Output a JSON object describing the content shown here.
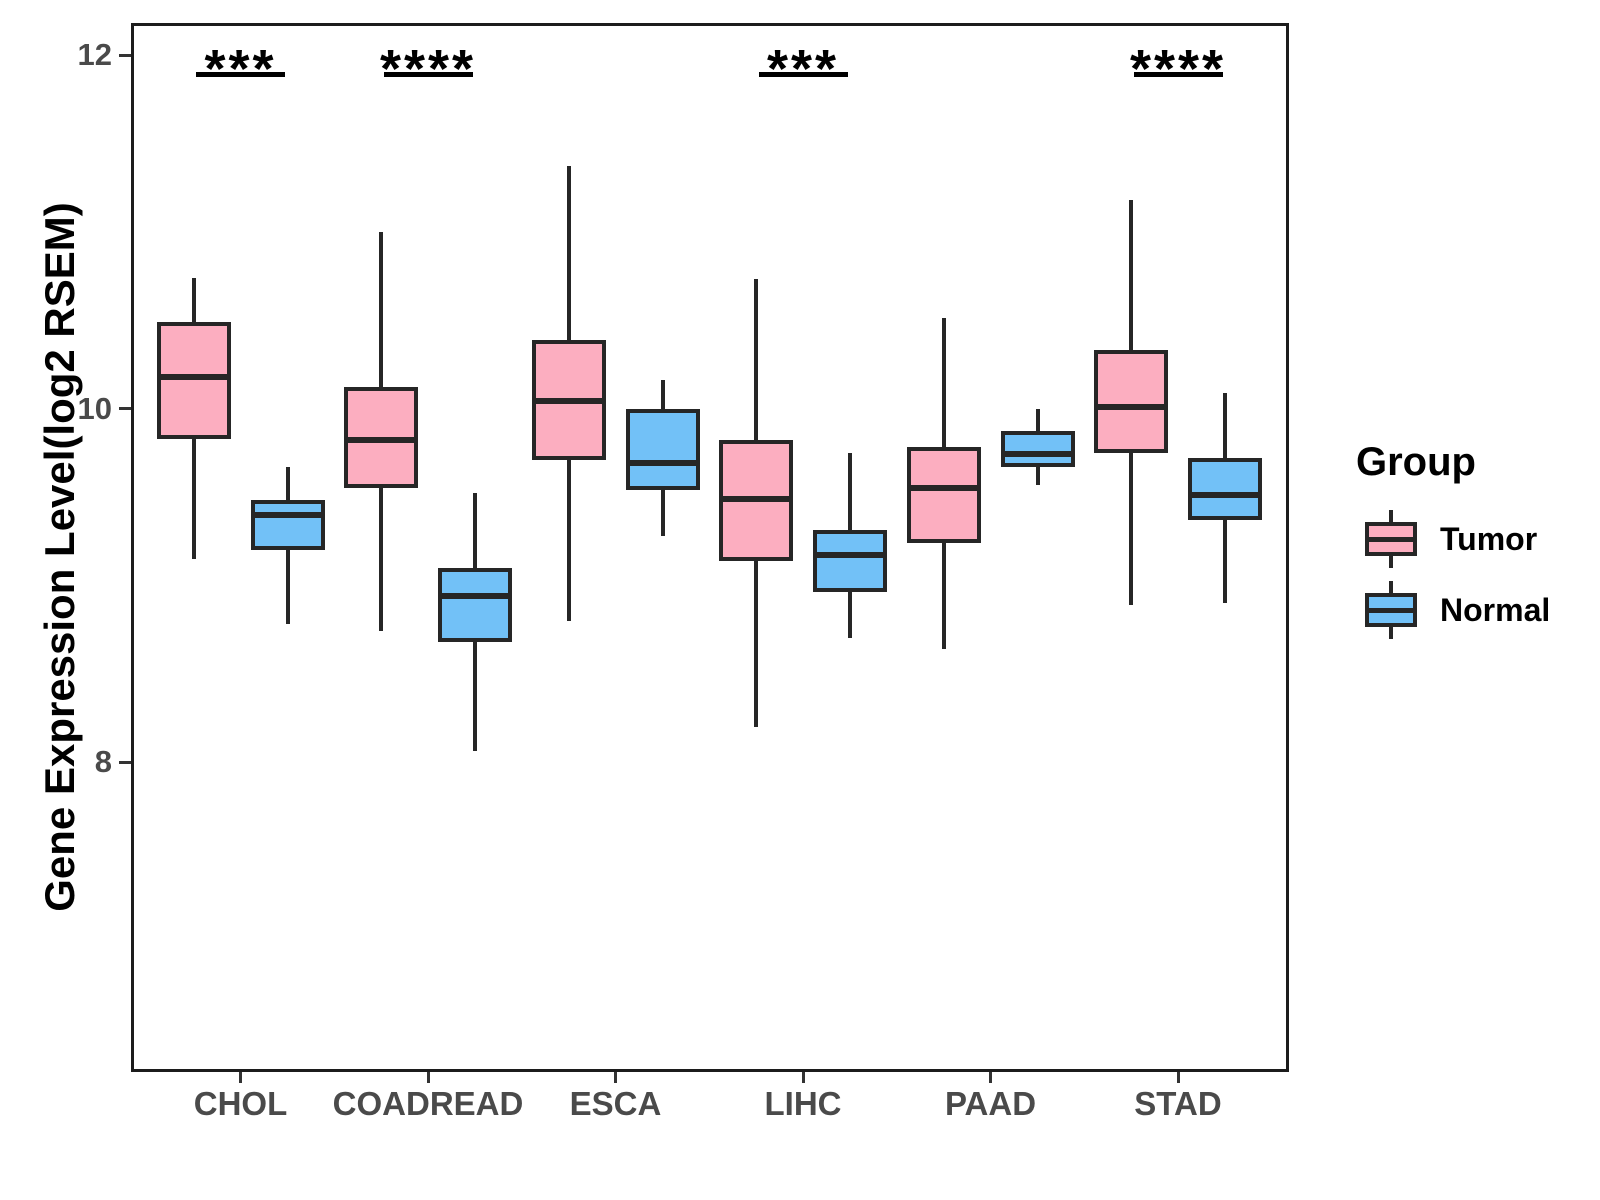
{
  "figure": {
    "ylabel": "Gene Expression Level(log2 RSEM)"
  },
  "legend": {
    "title": "Group",
    "entries": [
      {
        "label": "Tumor",
        "color": "#FCAEC0"
      },
      {
        "label": "Normal",
        "color": "#72C1F7"
      }
    ]
  },
  "chart_data": {
    "type": "boxplot",
    "title": "",
    "xlabel": "",
    "ylabel": "Gene Expression Level(log2 RSEM)",
    "categories": [
      "CHOL",
      "COADREAD",
      "ESCA",
      "LIHC",
      "PAAD",
      "STAD"
    ],
    "groups": [
      "Tumor",
      "Normal"
    ],
    "group_colors": {
      "Tumor": "#FCAEC0",
      "Normal": "#72C1F7"
    },
    "line_color": "#262626",
    "y_ticks": [
      12,
      10,
      8
    ],
    "ylim": [
      6.25,
      12.2
    ],
    "grid": false,
    "legend_position": "right",
    "series": [
      {
        "category": "CHOL",
        "group": "Tumor",
        "whisker_low": 9.15,
        "q1": 9.83,
        "median": 10.18,
        "q3": 10.49,
        "whisker_high": 10.74
      },
      {
        "category": "CHOL",
        "group": "Normal",
        "whisker_low": 8.78,
        "q1": 9.2,
        "median": 9.4,
        "q3": 9.48,
        "whisker_high": 9.67
      },
      {
        "category": "COADREAD",
        "group": "Tumor",
        "whisker_low": 8.74,
        "q1": 9.55,
        "median": 9.82,
        "q3": 10.12,
        "whisker_high": 11.0
      },
      {
        "category": "COADREAD",
        "group": "Normal",
        "whisker_low": 8.06,
        "q1": 8.68,
        "median": 8.94,
        "q3": 9.1,
        "whisker_high": 9.52
      },
      {
        "category": "ESCA",
        "group": "Tumor",
        "whisker_low": 8.8,
        "q1": 9.71,
        "median": 10.04,
        "q3": 10.39,
        "whisker_high": 11.37
      },
      {
        "category": "ESCA",
        "group": "Normal",
        "whisker_low": 9.28,
        "q1": 9.54,
        "median": 9.69,
        "q3": 10.0,
        "whisker_high": 10.16
      },
      {
        "category": "LIHC",
        "group": "Tumor",
        "whisker_low": 8.2,
        "q1": 9.14,
        "median": 9.49,
        "q3": 9.82,
        "whisker_high": 10.73
      },
      {
        "category": "LIHC",
        "group": "Normal",
        "whisker_low": 8.7,
        "q1": 8.96,
        "median": 9.17,
        "q3": 9.31,
        "whisker_high": 9.75
      },
      {
        "category": "PAAD",
        "group": "Tumor",
        "whisker_low": 8.64,
        "q1": 9.24,
        "median": 9.55,
        "q3": 9.78,
        "whisker_high": 10.51
      },
      {
        "category": "PAAD",
        "group": "Normal",
        "whisker_low": 9.57,
        "q1": 9.67,
        "median": 9.74,
        "q3": 9.87,
        "whisker_high": 10.0
      },
      {
        "category": "STAD",
        "group": "Tumor",
        "whisker_low": 8.89,
        "q1": 9.75,
        "median": 10.01,
        "q3": 10.33,
        "whisker_high": 11.18
      },
      {
        "category": "STAD",
        "group": "Normal",
        "whisker_low": 8.9,
        "q1": 9.37,
        "median": 9.51,
        "q3": 9.72,
        "whisker_high": 10.09
      }
    ],
    "significance": [
      {
        "category": "CHOL",
        "label": "***"
      },
      {
        "category": "COADREAD",
        "label": "****"
      },
      {
        "category": "LIHC",
        "label": "***"
      },
      {
        "category": "STAD",
        "label": "****"
      }
    ]
  }
}
